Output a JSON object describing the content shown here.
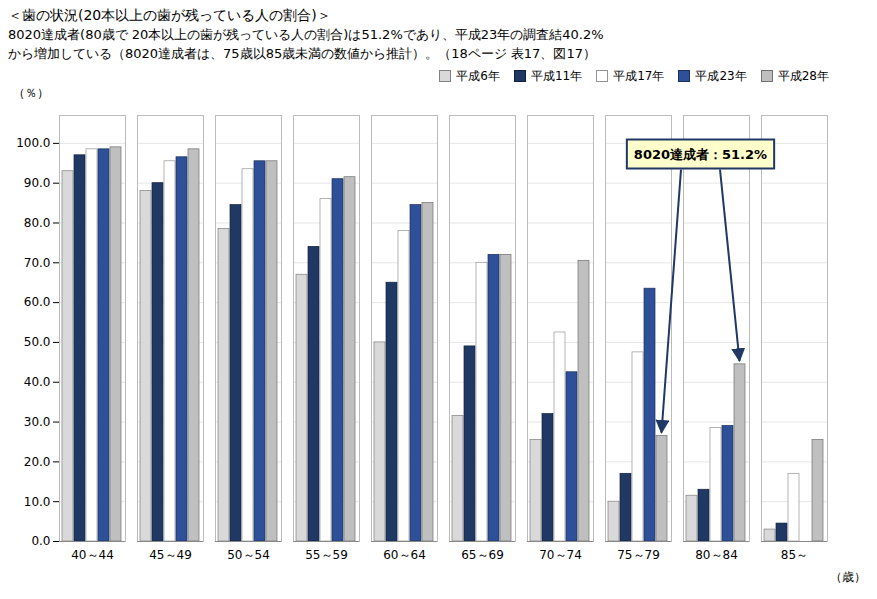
{
  "chart_data": {
    "type": "bar",
    "title": "＜歯の状況(20本以上の歯が残っている人の割合)＞",
    "subtitle": [
      "8020達成者(80歳で 20本以上の歯が残っている人の割合)は51.2%であり、平成23年の調査結40.2%",
      "から増加している（8020達成者は、75歳以85歳未満の数値から推計）。（18ページ 表17、図17）"
    ],
    "categories": [
      "40～44",
      "45～49",
      "50～54",
      "55～59",
      "60～64",
      "65～69",
      "70～74",
      "75～79",
      "80～84",
      "85～"
    ],
    "series": [
      {
        "name": "平成6年",
        "color": "#d9d9d9",
        "values": [
          93.0,
          88.0,
          78.5,
          67.0,
          50.0,
          31.5,
          25.5,
          10.0,
          11.5,
          3.0
        ]
      },
      {
        "name": "平成11年",
        "color": "#1f3864",
        "values": [
          97.0,
          90.0,
          84.5,
          74.0,
          65.0,
          49.0,
          32.0,
          17.0,
          13.0,
          4.5
        ]
      },
      {
        "name": "平成17年",
        "color": "#ffffff",
        "values": [
          98.5,
          95.5,
          93.5,
          86.0,
          78.0,
          70.0,
          52.5,
          47.5,
          28.5,
          17.0
        ]
      },
      {
        "name": "平成23年",
        "color": "#2e5099",
        "values": [
          98.5,
          96.5,
          95.5,
          91.0,
          84.5,
          72.0,
          42.5,
          63.5,
          29.0,
          0
        ]
      },
      {
        "name": "平成28年",
        "color": "#bfbfbf",
        "values": [
          99.0,
          98.5,
          95.5,
          91.5,
          85.0,
          72.0,
          70.5,
          26.5,
          44.5,
          25.5
        ]
      }
    ],
    "xlabel": "（歳）",
    "ylabel": "（％）",
    "ylim": [
      0,
      107
    ],
    "yticks": [
      {
        "value": 0,
        "label": "0.0"
      },
      {
        "value": 10,
        "label": "10.0"
      },
      {
        "value": 20,
        "label": "20.0"
      },
      {
        "value": 30,
        "label": "30.0"
      },
      {
        "value": 40,
        "label": "40.0"
      },
      {
        "value": 50,
        "label": "50.0"
      },
      {
        "value": 60,
        "label": "60.0"
      },
      {
        "value": 70,
        "label": "70.0"
      },
      {
        "value": 80,
        "label": "80.0"
      },
      {
        "value": 90,
        "label": "90.0"
      },
      {
        "value": 100,
        "label": "100.0"
      }
    ],
    "grid": true,
    "legend": "top",
    "annotation": {
      "text": "8020達成者：51.2%",
      "series": "平成28年",
      "categories": [
        "75～79",
        "80～84"
      ]
    }
  }
}
